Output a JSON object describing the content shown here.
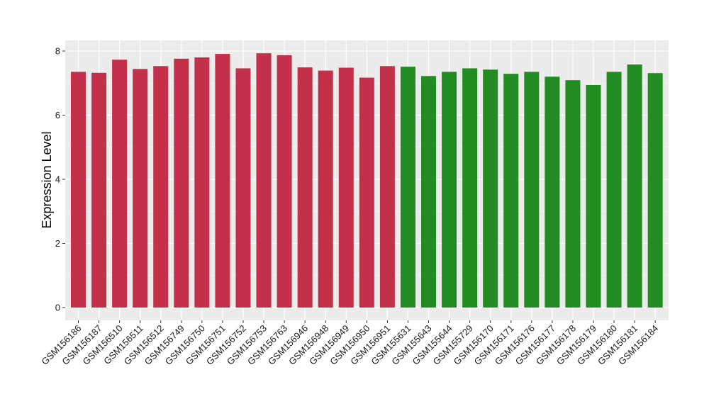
{
  "chart_data": {
    "type": "bar",
    "title": "",
    "xlabel": "",
    "ylabel": "Expression Level",
    "ylim": [
      0,
      8.25
    ],
    "yticks": [
      0,
      2,
      4,
      6,
      8
    ],
    "grid": true,
    "background_color": "#ebebeb",
    "grid_color": "#ffffff",
    "colors": {
      "group1": "#c3304a",
      "group2": "#228b22"
    },
    "categories": [
      "GSM156186",
      "GSM156187",
      "GSM156510",
      "GSM156511",
      "GSM156512",
      "GSM156749",
      "GSM156750",
      "GSM156751",
      "GSM156752",
      "GSM156753",
      "GSM156763",
      "GSM156946",
      "GSM156948",
      "GSM156949",
      "GSM156950",
      "GSM156951",
      "GSM155631",
      "GSM155643",
      "GSM155644",
      "GSM155729",
      "GSM156170",
      "GSM156171",
      "GSM156176",
      "GSM156177",
      "GSM156178",
      "GSM156179",
      "GSM156180",
      "GSM156181",
      "GSM156184"
    ],
    "values": [
      7.35,
      7.32,
      7.73,
      7.44,
      7.53,
      7.76,
      7.8,
      7.91,
      7.46,
      7.93,
      7.87,
      7.49,
      7.39,
      7.48,
      7.17,
      7.53,
      7.51,
      7.22,
      7.35,
      7.46,
      7.42,
      7.29,
      7.35,
      7.2,
      7.09,
      6.94,
      7.35,
      7.58,
      7.31
    ],
    "groups": [
      "group1",
      "group1",
      "group1",
      "group1",
      "group1",
      "group1",
      "group1",
      "group1",
      "group1",
      "group1",
      "group1",
      "group1",
      "group1",
      "group1",
      "group1",
      "group1",
      "group2",
      "group2",
      "group2",
      "group2",
      "group2",
      "group2",
      "group2",
      "group2",
      "group2",
      "group2",
      "group2",
      "group2",
      "group2"
    ]
  }
}
